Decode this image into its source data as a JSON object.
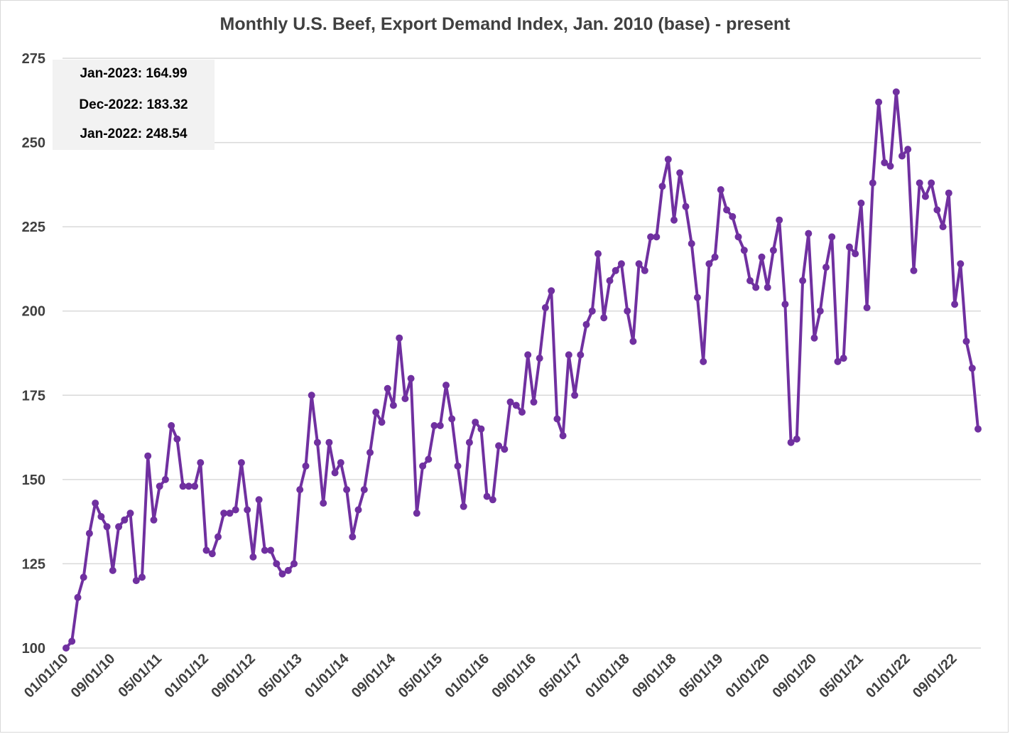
{
  "chart_data": {
    "type": "line",
    "title": "Monthly U.S. Beef, Export Demand Index, Jan. 2010 (base) - present",
    "xlabel": "",
    "ylabel": "",
    "ylim": [
      100,
      275
    ],
    "yticks": [
      100,
      125,
      150,
      175,
      200,
      225,
      250,
      275
    ],
    "xtick_labels": [
      "01/01/10",
      "09/01/10",
      "05/01/11",
      "01/01/12",
      "09/01/12",
      "05/01/13",
      "01/01/14",
      "09/01/14",
      "05/01/15",
      "01/01/16",
      "09/01/16",
      "05/01/17",
      "01/01/18",
      "09/01/18",
      "05/01/19",
      "01/01/20",
      "09/01/20",
      "05/01/21",
      "01/01/22",
      "09/01/22"
    ],
    "x_start": "2010-01",
    "x_end": "2023-01",
    "series": [
      {
        "color": "#7030a0",
        "values": [
          100,
          102,
          115,
          121,
          134,
          143,
          139,
          136,
          123,
          136,
          138,
          140,
          120,
          121,
          157,
          138,
          148,
          150,
          166,
          162,
          148,
          148,
          148,
          155,
          129,
          128,
          133,
          140,
          140,
          141,
          155,
          141,
          127,
          144,
          129,
          129,
          125,
          122,
          123,
          125,
          147,
          154,
          175,
          161,
          143,
          161,
          152,
          155,
          147,
          133,
          141,
          147,
          158,
          170,
          167,
          177,
          172,
          192,
          174,
          180,
          140,
          154,
          156,
          166,
          166,
          178,
          168,
          154,
          142,
          161,
          167,
          165,
          145,
          144,
          160,
          159,
          173,
          172,
          170,
          187,
          173,
          186,
          201,
          206,
          168,
          163,
          187,
          175,
          187,
          196,
          200,
          217,
          198,
          209,
          212,
          214,
          200,
          191,
          214,
          212,
          222,
          222,
          237,
          245,
          227,
          241,
          231,
          220,
          204,
          185,
          214,
          216,
          236,
          230,
          228,
          222,
          218,
          209,
          207,
          216,
          207,
          218,
          227,
          202,
          161,
          162,
          209,
          223,
          192,
          200,
          213,
          222,
          185,
          186,
          219,
          217,
          232,
          201,
          238,
          262,
          244,
          243,
          265,
          246,
          248,
          212,
          238,
          234,
          238,
          230,
          225,
          235,
          202,
          214,
          191,
          183,
          165
        ]
      }
    ],
    "annotations": [
      "Jan-2023: 164.99",
      "Dec-2022: 183.32",
      "Jan-2022: 248.54"
    ]
  },
  "style": {
    "line_color": "#7030a0",
    "grid_color": "#d9d9d9",
    "text_color": "#404040",
    "annotation_bg": "#f2f2f2"
  }
}
